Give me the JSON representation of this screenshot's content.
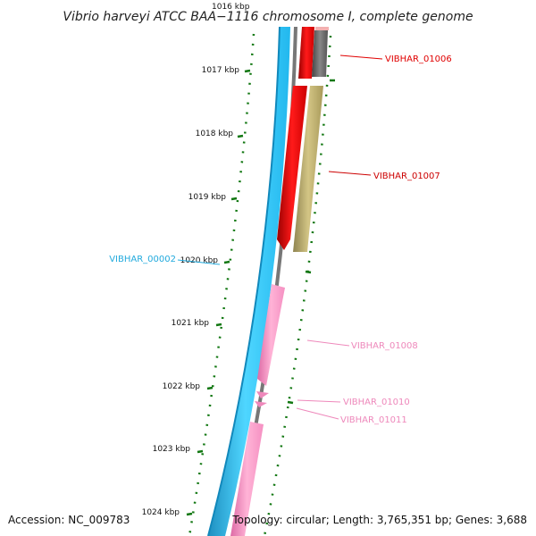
{
  "title": "Vibrio harveyi ATCC BAA−1116 chromosome I, complete genome",
  "accession": "Accession: NC_009783",
  "topology": "Topology: circular; Length: 3,765,351 bp; Genes: 3,688",
  "partial_tick_label": "1016 kbp",
  "ticks": [
    {
      "label": "1017 kbp"
    },
    {
      "label": "1018 kbp"
    },
    {
      "label": "1019 kbp"
    },
    {
      "label": "1020 kbp"
    },
    {
      "label": "1021 kbp"
    },
    {
      "label": "1022 kbp"
    },
    {
      "label": "1023 kbp"
    },
    {
      "label": "1024 kbp"
    }
  ],
  "gene_labels": [
    {
      "text": "VIBHAR_01006",
      "color": "#e00000"
    },
    {
      "text": "VIBHAR_01007",
      "color": "#cc0000"
    },
    {
      "text": "VIBHAR_00002",
      "color": "#22aadd"
    },
    {
      "text": "VIBHAR_01008",
      "color": "#ee88bb"
    },
    {
      "text": "VIBHAR_01010",
      "color": "#ee88bb"
    },
    {
      "text": "VIBHAR_01011",
      "color": "#ee88bb"
    }
  ],
  "colors": {
    "backbone_blue": "#33ccff",
    "backbone_blue_dark": "#1188bb",
    "backbone_grey": "#777777",
    "gene_red": "#ee0000",
    "gene_pink": "#ff99cc",
    "gene_olive": "#bbaa66",
    "gene_darkgrey": "#666666",
    "tick_green": "#117711"
  }
}
